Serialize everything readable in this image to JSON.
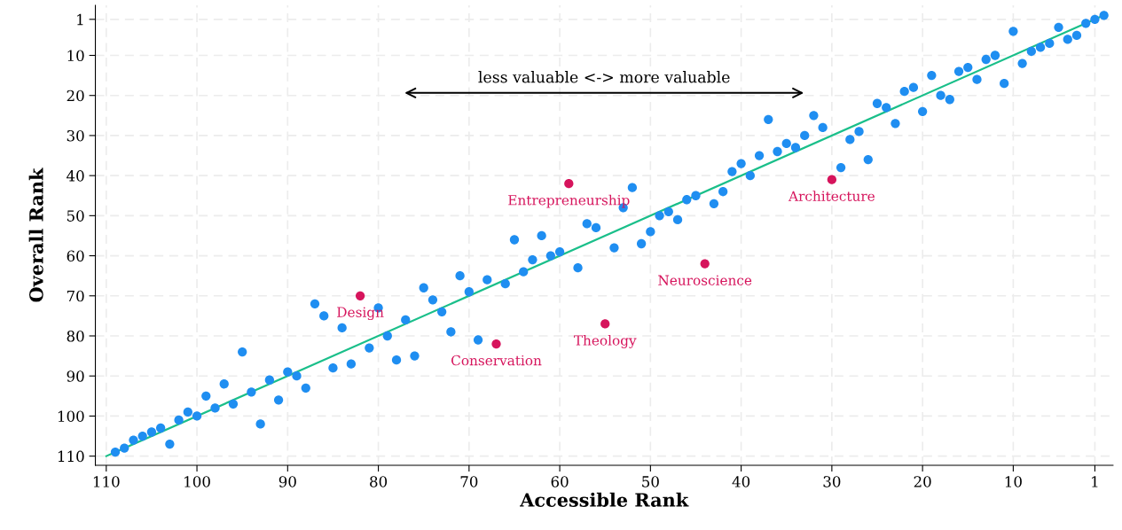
{
  "chart_data": {
    "type": "scatter",
    "xlabel": "Accessible Rank",
    "ylabel": "Overall Rank",
    "xlim": [
      111.2,
      -1
    ],
    "ylim": [
      112.3,
      -2.5
    ],
    "xticks": [
      110,
      100,
      90,
      80,
      70,
      60,
      50,
      40,
      30,
      20,
      10,
      1
    ],
    "yticks": [
      1,
      10,
      20,
      30,
      40,
      50,
      60,
      70,
      80,
      90,
      100,
      110
    ],
    "grid": true,
    "series": [
      {
        "type": "line",
        "marker": "none",
        "color": "#1abf8a",
        "x": [
          110,
          0
        ],
        "values": [
          110,
          0
        ]
      },
      {
        "marker": "circle",
        "color": "#1f8ef1",
        "x": [
          109,
          108,
          107,
          106,
          105,
          104,
          103,
          102,
          101,
          100,
          99,
          98,
          97,
          96,
          95,
          94,
          93,
          92,
          91,
          90,
          89,
          88,
          87,
          86,
          85,
          84,
          83,
          81,
          80,
          79,
          78,
          77,
          76,
          75,
          74,
          73,
          72,
          71,
          70,
          69,
          68,
          66,
          65,
          64,
          63,
          62,
          61,
          60,
          58,
          57,
          56,
          54,
          53,
          52,
          51,
          50,
          49,
          48,
          47,
          46,
          45,
          43,
          42,
          41,
          40,
          39,
          38,
          37,
          36,
          35,
          34,
          33,
          32,
          31,
          29,
          28,
          27,
          26,
          25,
          24,
          23,
          22,
          21,
          20,
          19,
          18,
          17,
          16,
          15,
          14,
          13,
          12,
          11,
          10,
          9,
          8,
          7,
          6,
          5,
          4,
          3,
          2,
          1,
          0
        ],
        "values": [
          109,
          108,
          106,
          105,
          104,
          103,
          107,
          101,
          99,
          100,
          95,
          98,
          92,
          97,
          84,
          94,
          102,
          91,
          96,
          89,
          90,
          93,
          72,
          75,
          88,
          78,
          87,
          83,
          73,
          80,
          86,
          76,
          85,
          68,
          71,
          74,
          79,
          65,
          69,
          81,
          66,
          67,
          56,
          64,
          61,
          55,
          60,
          59,
          63,
          52,
          53,
          58,
          48,
          43,
          57,
          54,
          50,
          49,
          51,
          46,
          45,
          47,
          44,
          39,
          37,
          40,
          35,
          26,
          34,
          32,
          33,
          30,
          25,
          28,
          38,
          31,
          29,
          36,
          22,
          23,
          27,
          19,
          18,
          24,
          15,
          20,
          21,
          14,
          13,
          16,
          11,
          10,
          17,
          4,
          12,
          9,
          8,
          7,
          3,
          6,
          5,
          2,
          1,
          0
        ]
      },
      {
        "marker": "circle",
        "color": "#d6145c",
        "x": [
          82,
          67,
          59,
          55,
          44,
          30
        ],
        "values": [
          70,
          82,
          42,
          77,
          62,
          41
        ]
      }
    ],
    "annotations": [
      {
        "text": "Design",
        "x": 82,
        "y": 70
      },
      {
        "text": "Conservation",
        "x": 67,
        "y": 82
      },
      {
        "text": "Entrepreneurship",
        "x": 59,
        "y": 42
      },
      {
        "text": "Theology",
        "x": 55,
        "y": 77
      },
      {
        "text": "Neuroscience",
        "x": 44,
        "y": 62
      },
      {
        "text": "Architecture",
        "x": 30,
        "y": 41
      },
      "less valuable <-> more valuable"
    ]
  }
}
